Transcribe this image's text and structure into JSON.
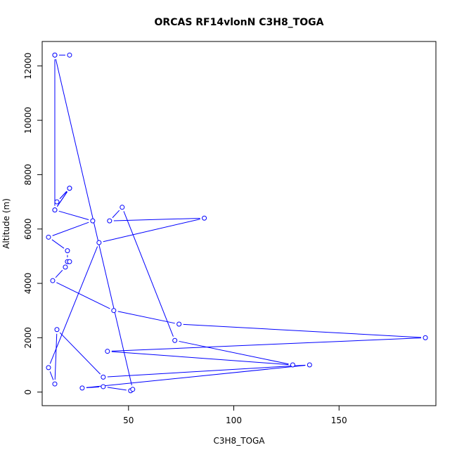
{
  "chart_data": {
    "type": "line",
    "title": "ORCAS RF14vlonN C3H8_TOGA",
    "xlabel": "C3H8_TOGA",
    "ylabel": "Altitude (m)",
    "xlim": [
      9,
      196
    ],
    "ylim": [
      -500,
      12900
    ],
    "x_ticks": [
      50,
      100,
      150
    ],
    "y_ticks": [
      0,
      2000,
      4000,
      6000,
      8000,
      10000,
      12000
    ],
    "grid": false,
    "legend": "none",
    "series_color": "#0000ff",
    "series": [
      {
        "x": [
          22,
          15,
          15,
          22,
          16,
          22,
          15,
          33,
          12,
          21,
          21,
          22,
          20,
          14,
          43,
          74,
          191,
          40,
          128,
          72,
          47,
          41,
          86,
          36,
          12,
          15,
          16,
          38,
          136,
          28,
          38,
          51,
          52,
          15
        ],
        "y": [
          12400,
          12400,
          6700,
          7500,
          7000,
          7500,
          6700,
          6300,
          5700,
          5200,
          4800,
          4800,
          4600,
          4100,
          3000,
          2500,
          2000,
          1500,
          1000,
          1900,
          6800,
          6300,
          6400,
          5500,
          900,
          300,
          2300,
          550,
          1000,
          150,
          200,
          50,
          100,
          12400
        ]
      }
    ]
  }
}
